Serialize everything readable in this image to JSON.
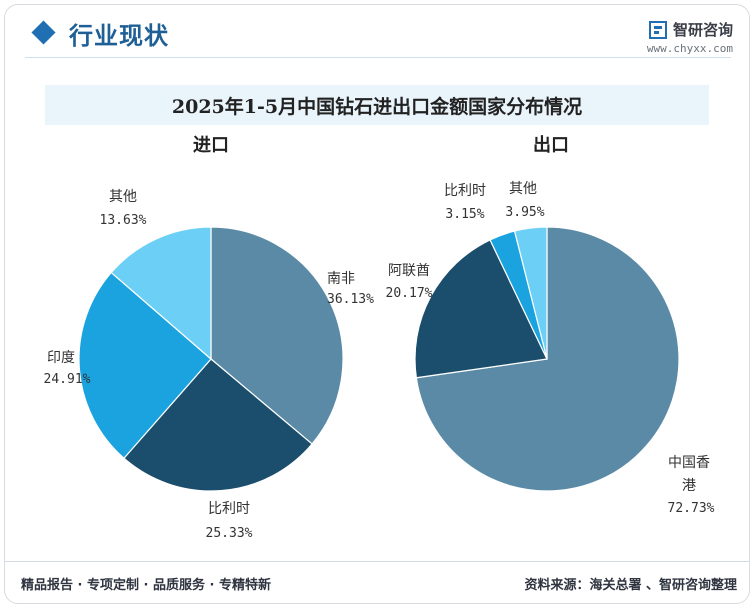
{
  "header": {
    "section_title": "行业现状",
    "logo_name": "智研咨询",
    "logo_url": "www.chyxx.com"
  },
  "title": "2025年1-5月中国钻石进出口金额国家分布情况",
  "colors": {
    "accent": "#1f6fb2",
    "band": "#eaf4fb",
    "slice_grey_blue": "#5a8aa5",
    "slice_navy": "#1b4e6c",
    "slice_blue": "#1aa3df",
    "slice_light": "#6ccff5"
  },
  "chart_data": [
    {
      "type": "pie",
      "title": "进口",
      "slices": [
        {
          "label": "南非",
          "value": 36.13,
          "value_text": "36.13%",
          "color": "#5a8aa5"
        },
        {
          "label": "比利时",
          "value": 25.33,
          "value_text": "25.33%",
          "color": "#1b4e6c"
        },
        {
          "label": "印度",
          "value": 24.91,
          "value_text": "24.91%",
          "color": "#1aa3df"
        },
        {
          "label": "其他",
          "value": 13.63,
          "value_text": "13.63%",
          "color": "#6ccff5"
        }
      ]
    },
    {
      "type": "pie",
      "title": "出口",
      "slices": [
        {
          "label": "中国香港",
          "value": 72.73,
          "value_text": "72.73%",
          "color": "#5a8aa5"
        },
        {
          "label": "阿联酋",
          "value": 20.17,
          "value_text": "20.17%",
          "color": "#1b4e6c"
        },
        {
          "label": "比利时",
          "value": 3.15,
          "value_text": "3.15%",
          "color": "#1aa3df"
        },
        {
          "label": "其他",
          "value": 3.95,
          "value_text": "3.95%",
          "color": "#6ccff5"
        }
      ]
    }
  ],
  "footer": {
    "slogan": "精品报告 · 专项定制 · 品质服务 · 专精特新",
    "source": "资料来源：海关总署 、智研咨询整理"
  }
}
